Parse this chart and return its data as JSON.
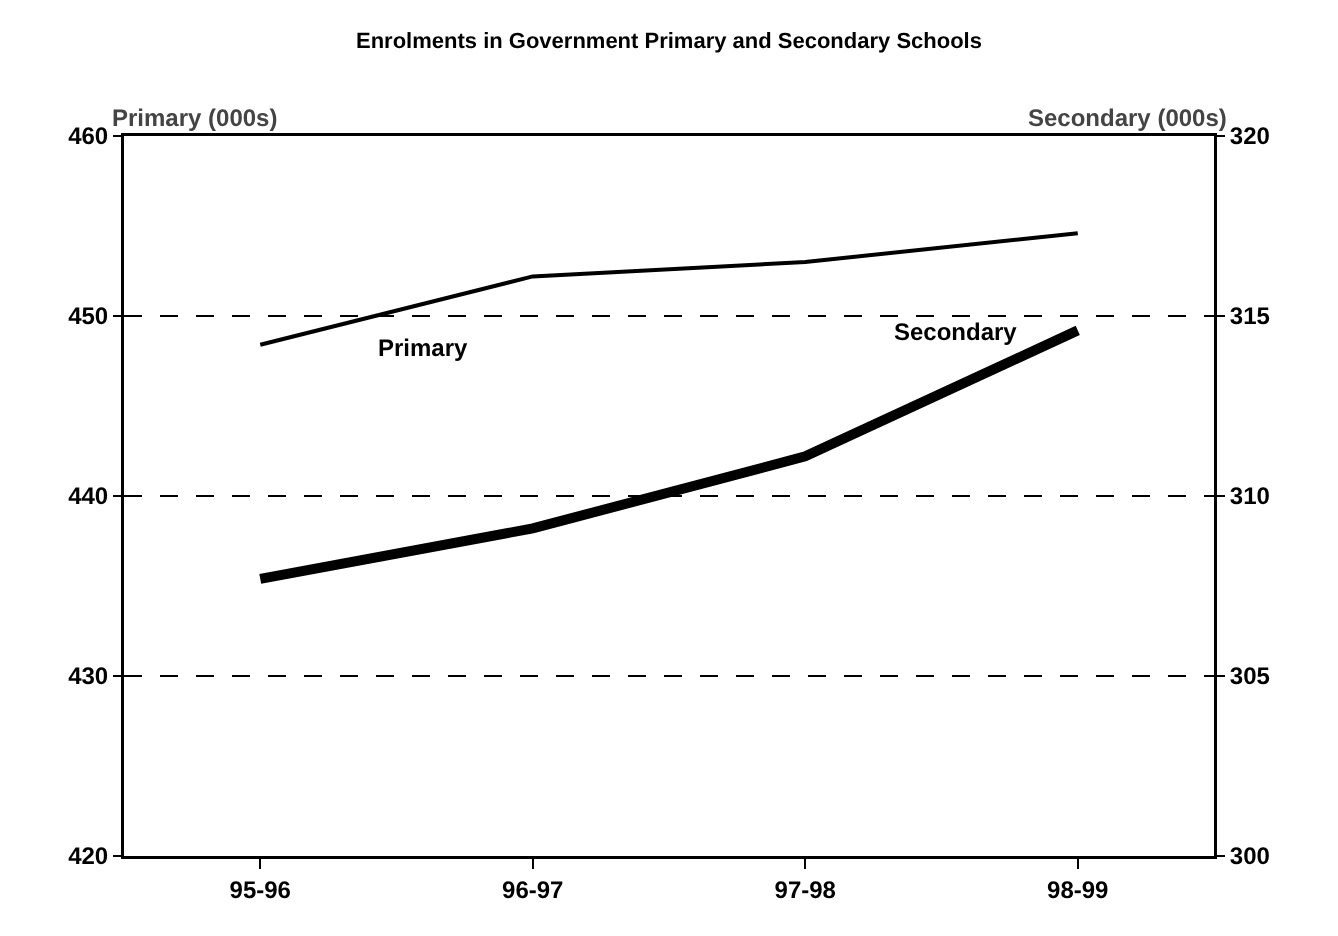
{
  "chart_data": {
    "type": "line",
    "title": "Enrolments in Government Primary and Secondary Schools",
    "ylabel": "Primary (000s)",
    "y2label": "Secondary (000s)",
    "categories": [
      "95-96",
      "96-97",
      "97-98",
      "98-99"
    ],
    "series": [
      {
        "name": "Primary",
        "color": "#000000",
        "values": [
          448.4,
          452.2,
          453.0,
          454.6
        ]
      },
      {
        "name": "Secondary",
        "color": "#000000",
        "axis": "y2",
        "values": [
          307.7,
          309.1,
          311.1,
          314.6
        ]
      }
    ],
    "ylim": [
      420,
      460
    ],
    "yticks": [
      420,
      430,
      440,
      450,
      460
    ],
    "y2lim": [
      300,
      320
    ],
    "y2ticks": [
      300,
      305,
      310,
      315,
      320
    ],
    "grid": "y",
    "legend": false,
    "marker": "none",
    "line_style": "solid"
  }
}
